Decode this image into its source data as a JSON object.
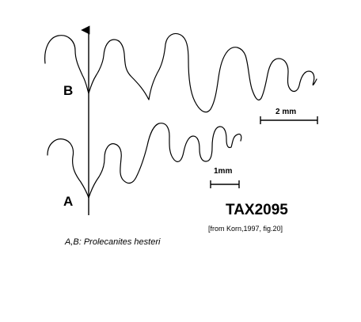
{
  "sutures": {
    "upper_label": "B",
    "lower_label": "A"
  },
  "scale_bars": {
    "upper_label": "2 mm",
    "lower_label": "1mm"
  },
  "specimen": {
    "code": "TAX2095",
    "source": "[from Korn,1997, fig.20]",
    "caption": "A,B: Prolecanites hesteri"
  },
  "colors": {
    "line": "#000000",
    "background": "#ffffff"
  }
}
